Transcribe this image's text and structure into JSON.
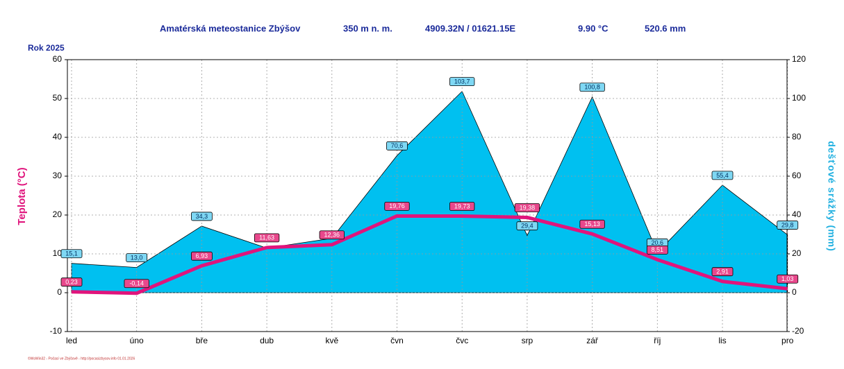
{
  "chart_data": {
    "type": "combo",
    "title": "Amatérská meteostanice Zbýšov",
    "annotations": [
      "350 m n. m.",
      "4909.32N / 01621.15E",
      "9.90 °C",
      "520.6 mm"
    ],
    "subtitle": "Rok 2025",
    "footer": "©WsWin32 - Počasí ve Zbýšově - http://pocasizbysov.info 01.01.2026",
    "ylabel": "Teplota (°C)",
    "y2label": "dešťové srážky (mm)",
    "categories": [
      "led",
      "úno",
      "bře",
      "dub",
      "kvě",
      "čvn",
      "čvc",
      "srp",
      "zář",
      "říj",
      "lis",
      "pro"
    ],
    "series": [
      {
        "type": "area",
        "axis": "y2",
        "color": "#00c0f0",
        "values": [
          15.1,
          13.0,
          34.3,
          23,
          28,
          70.6,
          103.7,
          29.4,
          100.8,
          20.6,
          55.4,
          29.8
        ],
        "value_labels": [
          "15,1",
          "13,0",
          "34,3",
          null,
          null,
          "70,6",
          "103,7",
          "29,4",
          "100,8",
          "20,6",
          "55,4",
          "29,8"
        ]
      },
      {
        "type": "line",
        "color": "#e0147c",
        "values": [
          0.23,
          -0.14,
          6.93,
          11.63,
          12.36,
          19.76,
          19.73,
          19.38,
          15.13,
          8.51,
          2.91,
          1.03
        ],
        "value_labels": [
          "0,23",
          "-0,14",
          "6,93",
          "11,63",
          "12,36",
          "19,76",
          "19,73",
          "19,38",
          "15,13",
          "8,51",
          "2,91",
          "1,03"
        ]
      }
    ],
    "ylim": [
      -10,
      60
    ],
    "yticks": [
      -10,
      0,
      10,
      20,
      30,
      40,
      50,
      60
    ],
    "y2lim": [
      -20,
      120
    ],
    "y2ticks": [
      -20,
      0,
      20,
      40,
      60,
      80,
      100,
      120
    ],
    "grid": true
  }
}
